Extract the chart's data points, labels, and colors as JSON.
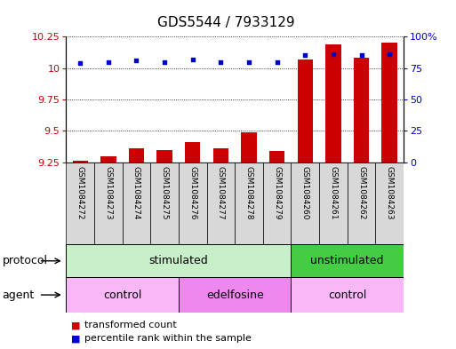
{
  "title": "GDS5544 / 7933129",
  "samples": [
    "GSM1084272",
    "GSM1084273",
    "GSM1084274",
    "GSM1084275",
    "GSM1084276",
    "GSM1084277",
    "GSM1084278",
    "GSM1084279",
    "GSM1084260",
    "GSM1084261",
    "GSM1084262",
    "GSM1084263"
  ],
  "transformed_count": [
    9.26,
    9.3,
    9.36,
    9.35,
    9.41,
    9.36,
    9.49,
    9.34,
    10.07,
    10.19,
    10.08,
    10.2
  ],
  "percentile_rank": [
    79,
    80,
    81,
    80,
    82,
    80,
    80,
    80,
    85,
    86,
    85,
    86
  ],
  "ylim_left": [
    9.25,
    10.25
  ],
  "ylim_right": [
    0,
    100
  ],
  "yticks_left": [
    9.25,
    9.5,
    9.75,
    10.0,
    10.25
  ],
  "yticks_right": [
    0,
    25,
    50,
    75,
    100
  ],
  "ytick_labels_left": [
    "9.25",
    "9.5",
    "9.75",
    "10",
    "10.25"
  ],
  "ytick_labels_right": [
    "0",
    "25",
    "50",
    "75",
    "100%"
  ],
  "bar_color": "#cc0000",
  "dot_color": "#0000cc",
  "bar_bottom": 9.25,
  "protocol_groups": [
    {
      "label": "stimulated",
      "start": 0,
      "end": 7,
      "color": "#c8f0c8"
    },
    {
      "label": "unstimulated",
      "start": 8,
      "end": 11,
      "color": "#44cc44"
    }
  ],
  "agent_groups": [
    {
      "label": "control",
      "start": 0,
      "end": 3,
      "color": "#f8b8f8"
    },
    {
      "label": "edelfosine",
      "start": 4,
      "end": 7,
      "color": "#ee88ee"
    },
    {
      "label": "control",
      "start": 8,
      "end": 11,
      "color": "#f8b8f8"
    }
  ],
  "xtick_area_color": "#d8d8d8",
  "legend_transformed": "transformed count",
  "legend_percentile": "percentile rank within the sample",
  "protocol_label": "protocol",
  "agent_label": "agent",
  "title_fontsize": 11,
  "tick_fontsize": 8,
  "label_fontsize": 9,
  "bar_width": 0.55
}
